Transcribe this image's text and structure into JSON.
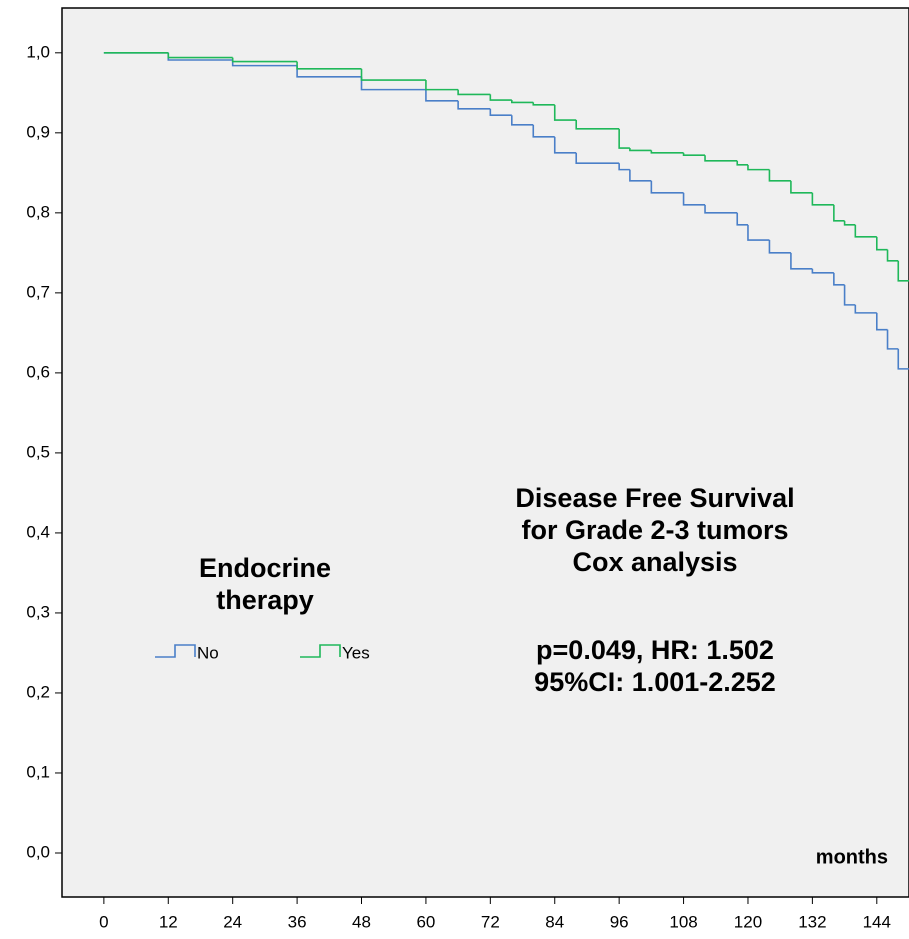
{
  "chart_data": {
    "type": "step",
    "x_label": "months",
    "legend_title": "Endocrine therapy",
    "annotations": [
      "Disease Free Survival",
      "for Grade 2-3 tumors",
      "Cox analysis",
      "p=0.049, HR: 1.502",
      "95%CI: 1.001-2.252"
    ],
    "x": [
      0,
      12,
      24,
      36,
      48,
      60,
      66,
      72,
      76,
      80,
      84,
      88,
      96,
      98,
      102,
      108,
      112,
      118,
      120,
      124,
      128,
      132,
      136,
      138,
      140,
      144,
      146,
      148,
      150
    ],
    "series": [
      {
        "name": "No",
        "color": "#4a7fc8",
        "values": [
          1.0,
          0.991,
          0.984,
          0.97,
          0.954,
          0.94,
          0.93,
          0.922,
          0.91,
          0.895,
          0.875,
          0.862,
          0.854,
          0.84,
          0.825,
          0.81,
          0.8,
          0.785,
          0.766,
          0.75,
          0.73,
          0.725,
          0.71,
          0.685,
          0.675,
          0.654,
          0.63,
          0.605,
          0.605
        ]
      },
      {
        "name": "Yes",
        "color": "#1fb85a",
        "values": [
          1.0,
          0.994,
          0.989,
          0.98,
          0.966,
          0.954,
          0.948,
          0.941,
          0.938,
          0.935,
          0.916,
          0.905,
          0.881,
          0.878,
          0.875,
          0.872,
          0.865,
          0.86,
          0.854,
          0.84,
          0.825,
          0.81,
          0.79,
          0.785,
          0.77,
          0.754,
          0.74,
          0.715,
          0.715
        ]
      }
    ],
    "xlim": [
      -7.8,
      150
    ],
    "xticks": [
      0,
      12,
      24,
      36,
      48,
      60,
      72,
      84,
      96,
      108,
      120,
      132,
      144
    ],
    "ylim": [
      -0.055,
      1.056
    ],
    "yticks": [
      {
        "value": 0,
        "label": "0,0"
      },
      {
        "value": 0.1,
        "label": "0,1"
      },
      {
        "value": 0.2,
        "label": "0,2"
      },
      {
        "value": 0.3,
        "label": "0,3"
      },
      {
        "value": 0.4,
        "label": "0,4"
      },
      {
        "value": 0.5,
        "label": "0,5"
      },
      {
        "value": 0.6,
        "label": "0,6"
      },
      {
        "value": 0.7,
        "label": "0,7"
      },
      {
        "value": 0.8,
        "label": "0,8"
      },
      {
        "value": 0.9,
        "label": "0,9"
      },
      {
        "value": 1,
        "label": "1,0"
      }
    ]
  }
}
